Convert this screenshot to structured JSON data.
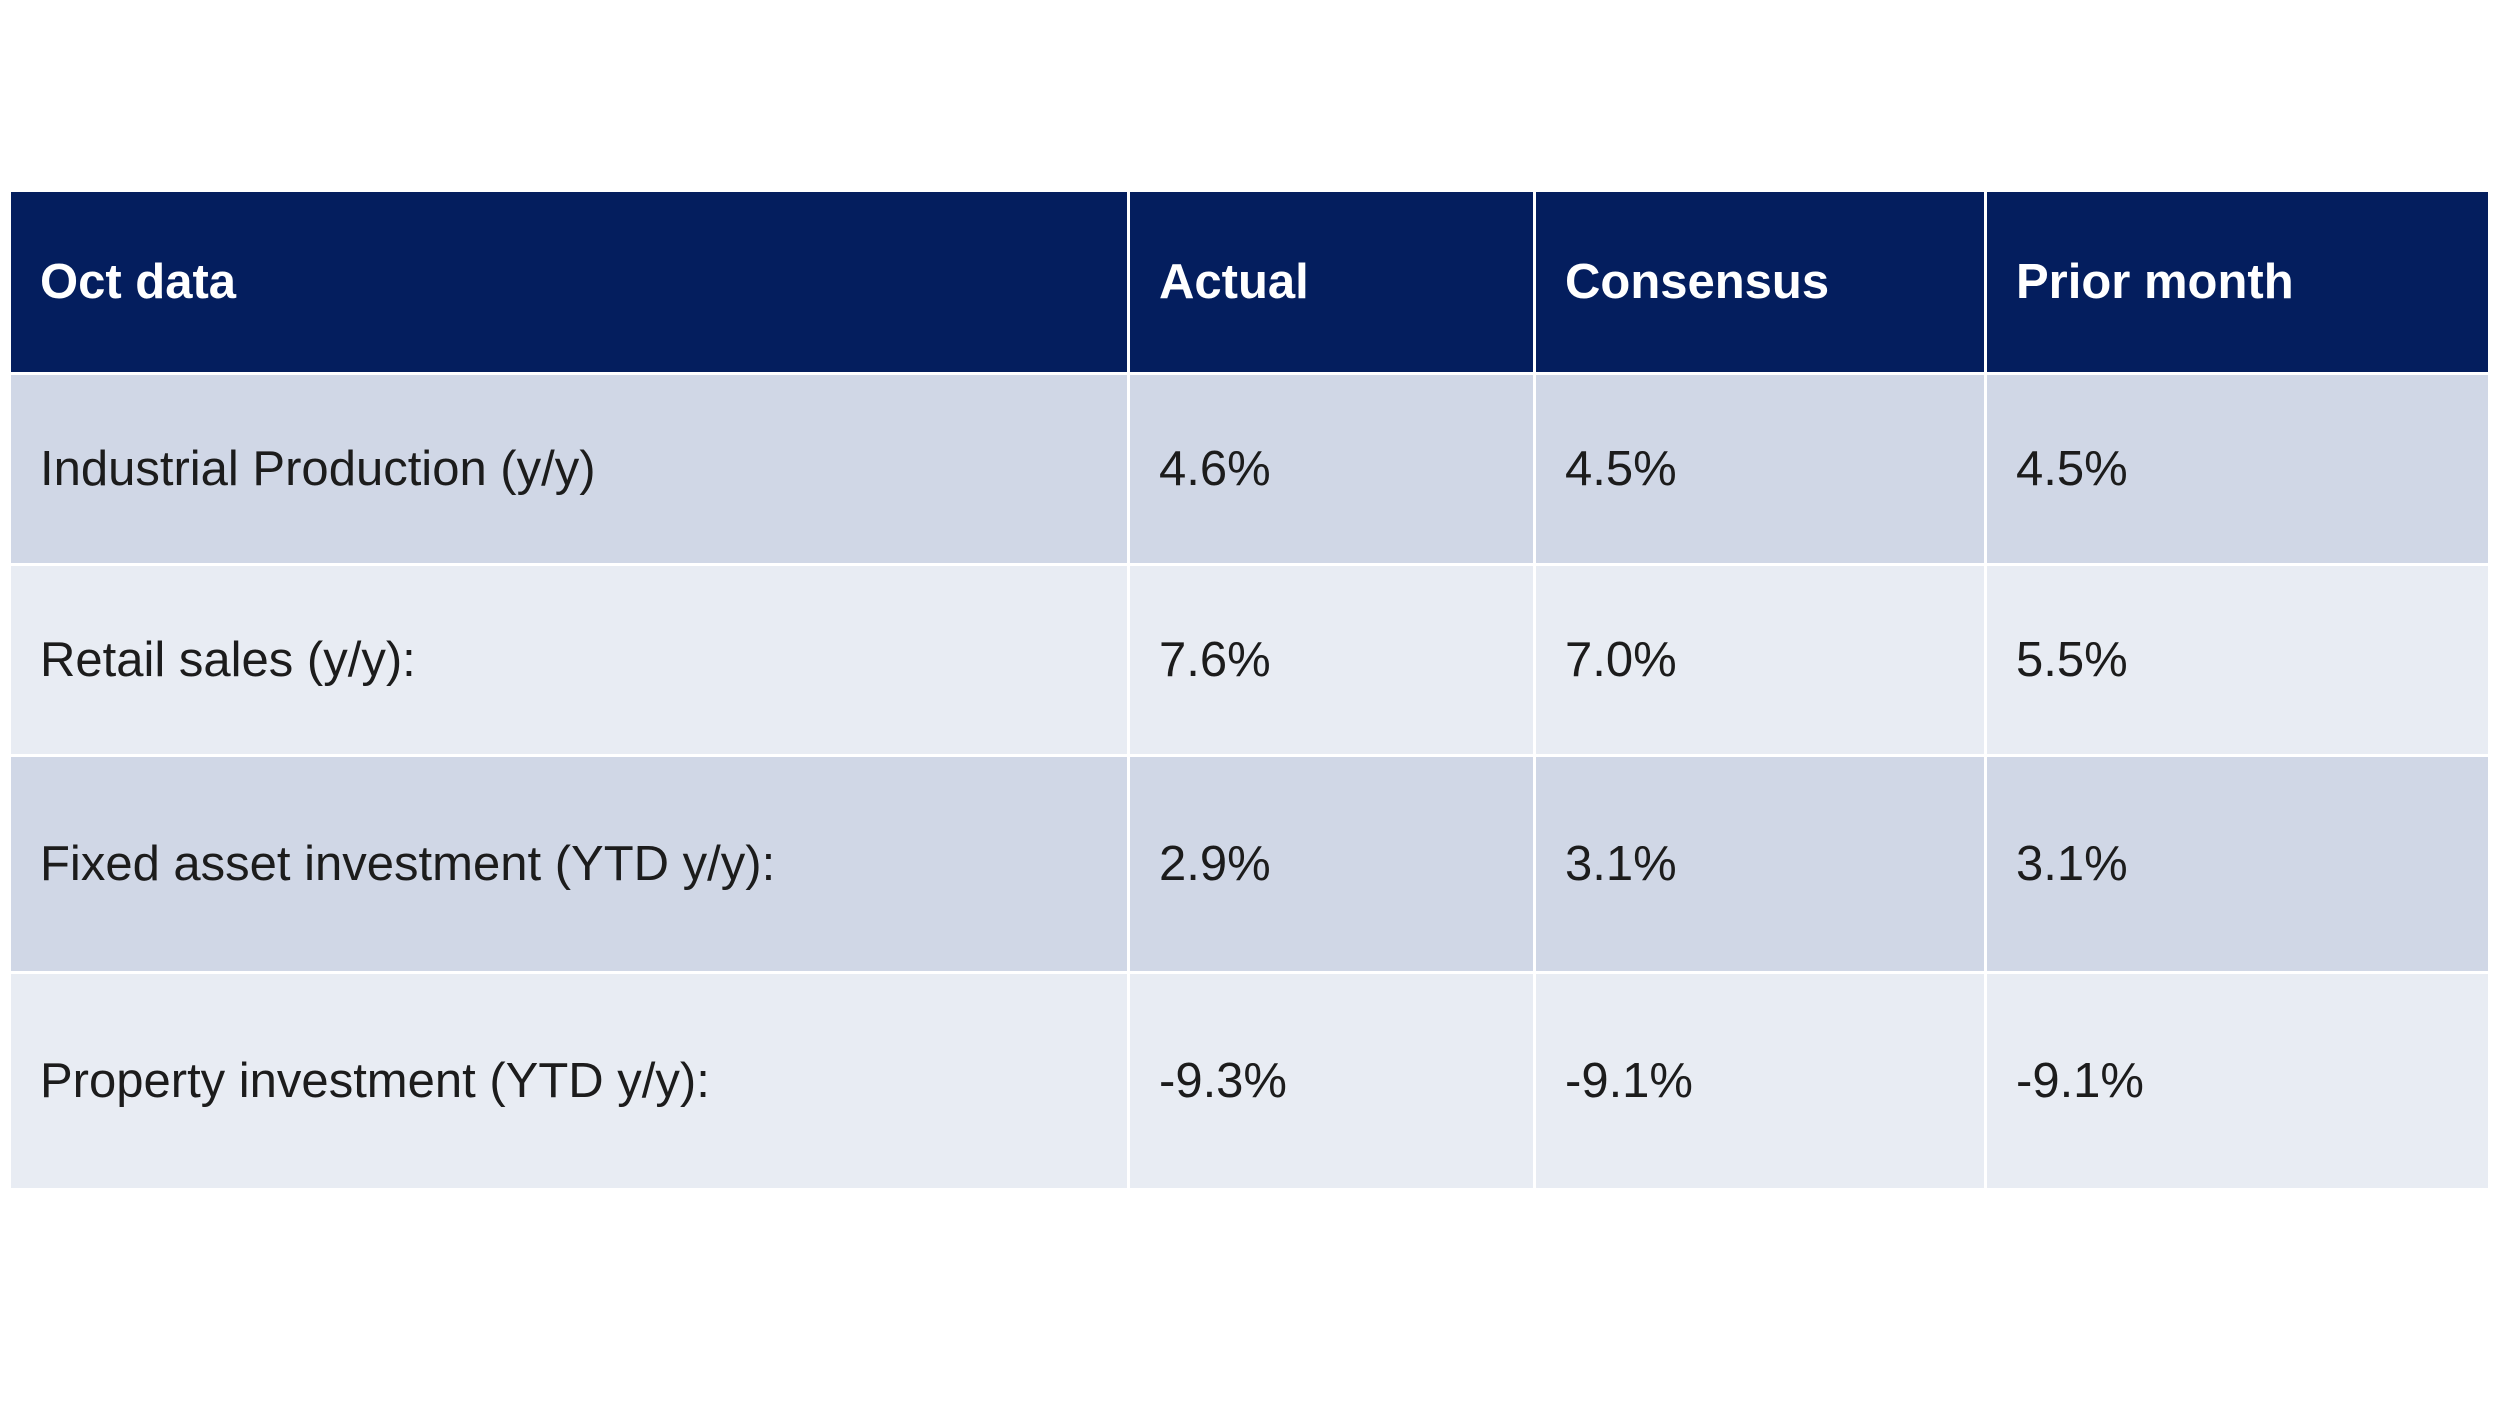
{
  "chart_data": {
    "type": "table",
    "columns": [
      "Oct data",
      "Actual",
      "Consensus",
      "Prior month"
    ],
    "rows": [
      [
        "Industrial Production (y/y)",
        "4.6%",
        "4.5%",
        "4.5%"
      ],
      [
        "Retail sales (y/y):",
        "7.6%",
        "7.0%",
        "5.5%"
      ],
      [
        "Fixed asset investment (YTD y/y):",
        "2.9%",
        "3.1%",
        "3.1%"
      ],
      [
        "Property investment (YTD y/y):",
        "-9.3%",
        "-9.1%",
        "-9.1%"
      ]
    ],
    "header_color": "#041e5e",
    "row_colors": [
      "#d0d7e6",
      "#e8ecf3"
    ]
  }
}
